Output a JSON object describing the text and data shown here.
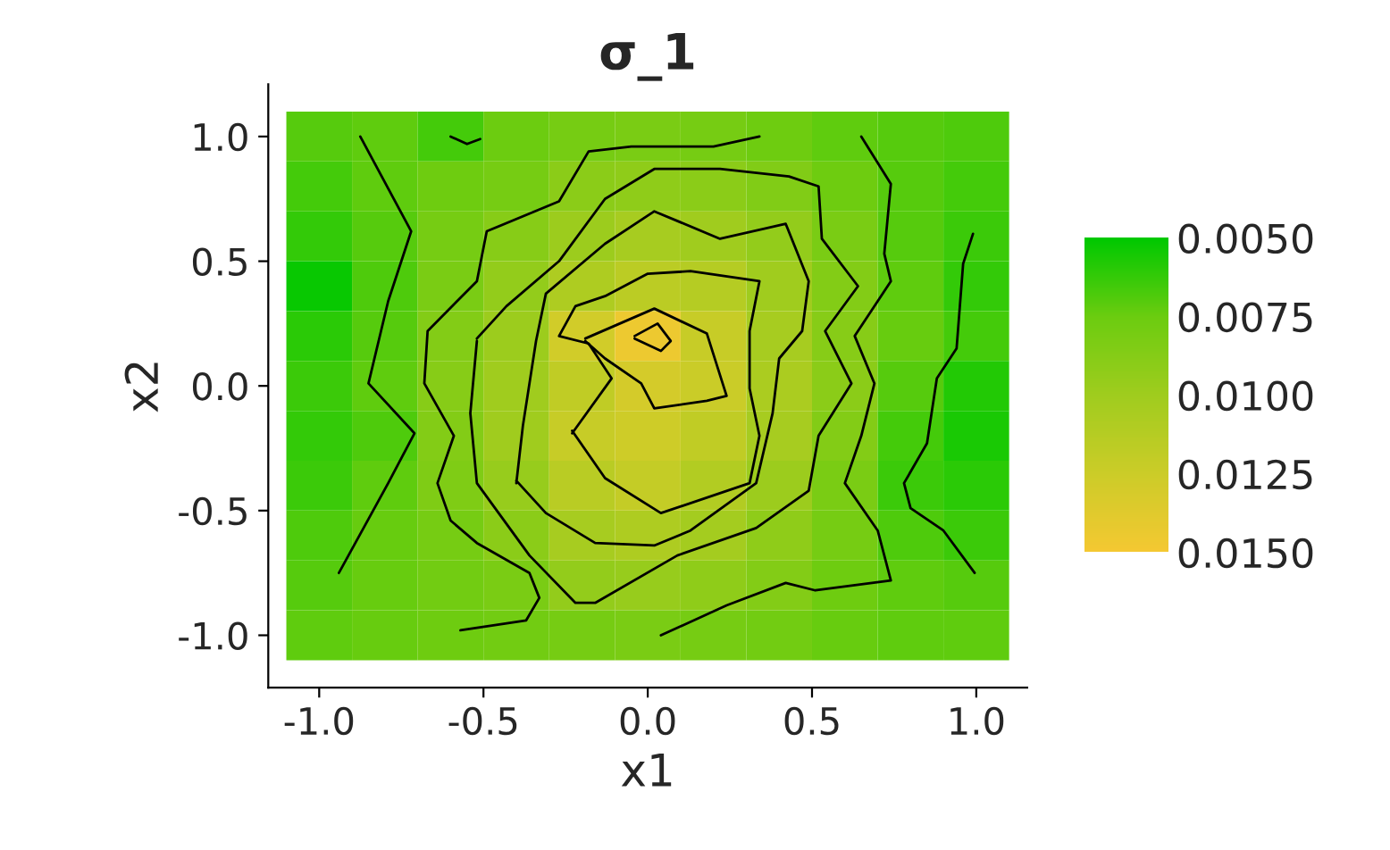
{
  "chart_data": {
    "type": "heatmap",
    "title": "σ_1",
    "xlabel": "x1",
    "ylabel": "x2",
    "x": [
      -1.0,
      -0.8,
      -0.6,
      -0.4,
      -0.2,
      0.0,
      0.2,
      0.4,
      0.6,
      0.8,
      1.0
    ],
    "y": [
      1.0,
      0.8,
      0.6,
      0.4,
      0.2,
      0.0,
      -0.2,
      -0.4,
      -0.6,
      -0.8,
      -1.0
    ],
    "cells": [
      [
        0.007,
        0.0072,
        0.0066,
        0.0075,
        0.008,
        0.0082,
        0.008,
        0.0076,
        0.0072,
        0.007,
        0.0068
      ],
      [
        0.0066,
        0.0072,
        0.0076,
        0.008,
        0.009,
        0.0092,
        0.009,
        0.0085,
        0.0076,
        0.007,
        0.0066
      ],
      [
        0.0062,
        0.007,
        0.008,
        0.0088,
        0.0098,
        0.0104,
        0.01,
        0.0094,
        0.0082,
        0.007,
        0.0064
      ],
      [
        0.0052,
        0.0068,
        0.0082,
        0.0094,
        0.0108,
        0.0115,
        0.0112,
        0.01,
        0.0086,
        0.0072,
        0.0062
      ],
      [
        0.006,
        0.007,
        0.0086,
        0.0098,
        0.0128,
        0.0145,
        0.0122,
        0.0104,
        0.0088,
        0.0074,
        0.0066
      ],
      [
        0.0064,
        0.0072,
        0.0088,
        0.01,
        0.0118,
        0.013,
        0.0124,
        0.0106,
        0.009,
        0.007,
        0.0058
      ],
      [
        0.0062,
        0.0068,
        0.0086,
        0.01,
        0.0122,
        0.0126,
        0.0118,
        0.0104,
        0.0086,
        0.0066,
        0.0056
      ],
      [
        0.0064,
        0.0072,
        0.0084,
        0.0096,
        0.0114,
        0.012,
        0.011,
        0.0098,
        0.0082,
        0.0064,
        0.006
      ],
      [
        0.0068,
        0.0074,
        0.008,
        0.009,
        0.0104,
        0.0108,
        0.0102,
        0.0092,
        0.008,
        0.0068,
        0.0064
      ],
      [
        0.007,
        0.0074,
        0.0078,
        0.0082,
        0.0094,
        0.0096,
        0.0092,
        0.0086,
        0.0076,
        0.0072,
        0.007
      ],
      [
        0.0072,
        0.0074,
        0.0076,
        0.0078,
        0.008,
        0.0082,
        0.008,
        0.0078,
        0.0074,
        0.0072,
        0.0072
      ]
    ],
    "colors": [
      "#00c800",
      "#6ccc10",
      "#a0cc1e",
      "#cccc28",
      "#f5c832"
    ],
    "clim": [
      0.005,
      0.015
    ],
    "cticks": [
      {
        "value": 0.005,
        "label": "0.0050"
      },
      {
        "value": 0.0075,
        "label": "0.0075"
      },
      {
        "value": 0.01,
        "label": "0.0100"
      },
      {
        "value": 0.0125,
        "label": "0.0125"
      },
      {
        "value": 0.015,
        "label": "0.0150"
      }
    ],
    "xlim": [
      -1.155,
      1.155
    ],
    "ylim": [
      -1.21,
      1.21
    ],
    "xticks": [
      {
        "value": -1.0,
        "label": "-1.0"
      },
      {
        "value": -0.5,
        "label": "-0.5"
      },
      {
        "value": 0.0,
        "label": "0.0"
      },
      {
        "value": 0.5,
        "label": "0.5"
      },
      {
        "value": 1.0,
        "label": "1.0"
      }
    ],
    "yticks": [
      {
        "value": -1.0,
        "label": "-1.0"
      },
      {
        "value": -0.5,
        "label": "-0.5"
      },
      {
        "value": 0.0,
        "label": "0.0"
      },
      {
        "value": 0.5,
        "label": "0.5"
      },
      {
        "value": 1.0,
        "label": "1.0"
      }
    ],
    "grid": false,
    "series": [
      {
        "type": "line",
        "color": "#000000",
        "x": [
          -0.875,
          -0.72,
          -0.79,
          -0.85,
          -0.71,
          -0.79,
          -0.94
        ],
        "values": [
          1.0,
          0.62,
          0.34,
          0.01,
          -0.19,
          -0.39,
          -0.75
        ]
      },
      {
        "type": "line",
        "color": "#000000",
        "x": [
          -0.6,
          -0.55,
          -0.51
        ],
        "values": [
          1.0,
          0.97,
          0.99
        ]
      },
      {
        "type": "line",
        "color": "#000000",
        "x": [
          0.34,
          0.2,
          -0.05,
          -0.18,
          -0.27,
          -0.49,
          -0.52,
          -0.67,
          -0.68,
          -0.59,
          -0.64,
          -0.6,
          -0.52,
          -0.36,
          -0.33,
          -0.37,
          -0.57
        ],
        "values": [
          1.0,
          0.96,
          0.96,
          0.94,
          0.74,
          0.62,
          0.42,
          0.22,
          0.01,
          -0.2,
          -0.39,
          -0.54,
          -0.63,
          -0.75,
          -0.85,
          -0.94,
          -0.98
        ]
      },
      {
        "type": "line",
        "color": "#000000",
        "x": [
          0.65,
          0.74,
          0.72,
          0.74,
          0.63,
          0.69,
          0.65,
          0.6,
          0.7,
          0.74,
          0.51,
          0.42,
          0.24,
          0.04
        ],
        "values": [
          1.0,
          0.81,
          0.53,
          0.42,
          0.2,
          0.01,
          -0.2,
          -0.39,
          -0.58,
          -0.78,
          -0.82,
          -0.79,
          -0.88,
          -1.0
        ]
      },
      {
        "type": "line",
        "color": "#000000",
        "x": [
          -0.52,
          -0.43,
          -0.27,
          -0.13,
          0.02,
          0.22,
          0.43,
          0.52,
          0.53,
          0.64,
          0.54,
          0.62,
          0.52,
          0.49,
          0.33,
          0.09,
          -0.16,
          -0.22,
          -0.36,
          -0.52,
          -0.54,
          -0.52
        ],
        "values": [
          0.19,
          0.32,
          0.5,
          0.75,
          0.87,
          0.87,
          0.84,
          0.8,
          0.59,
          0.4,
          0.22,
          0.01,
          -0.2,
          -0.42,
          -0.57,
          -0.68,
          -0.87,
          -0.87,
          -0.68,
          -0.39,
          -0.11,
          0.18
        ]
      },
      {
        "type": "line",
        "color": "#000000",
        "x": [
          -0.4,
          -0.38,
          -0.34,
          -0.31,
          -0.13,
          0.02,
          0.22,
          0.42,
          0.49,
          0.47,
          0.4,
          0.38,
          0.33,
          0.13,
          0.02,
          -0.16,
          -0.31,
          -0.4
        ],
        "values": [
          -0.39,
          -0.16,
          0.18,
          0.37,
          0.57,
          0.7,
          0.59,
          0.65,
          0.42,
          0.22,
          0.11,
          -0.11,
          -0.39,
          -0.58,
          -0.64,
          -0.63,
          -0.51,
          -0.38
        ]
      },
      {
        "type": "line",
        "color": "#000000",
        "x": [
          -0.23,
          -0.11,
          -0.18,
          -0.27,
          -0.22,
          -0.13,
          0.0,
          0.13,
          0.34,
          0.31,
          0.31,
          0.34,
          0.31,
          0.04,
          -0.13,
          -0.23
        ],
        "values": [
          -0.19,
          0.03,
          0.17,
          0.2,
          0.32,
          0.36,
          0.45,
          0.46,
          0.42,
          0.22,
          -0.01,
          -0.2,
          -0.39,
          -0.51,
          -0.37,
          -0.18
        ]
      },
      {
        "type": "line",
        "color": "#000000",
        "x": [
          -0.19,
          0.02,
          0.18,
          0.24,
          0.18,
          0.02,
          -0.02,
          -0.13,
          -0.19
        ],
        "values": [
          0.19,
          0.31,
          0.21,
          -0.04,
          -0.06,
          -0.09,
          0.01,
          0.11,
          0.18
        ]
      },
      {
        "type": "line",
        "color": "#000000",
        "x": [
          -0.04,
          0.03,
          0.07,
          0.04,
          -0.04
        ],
        "values": [
          0.2,
          0.25,
          0.18,
          0.14,
          0.19
        ]
      },
      {
        "type": "line",
        "color": "#000000",
        "x": [
          0.99,
          0.96,
          0.94,
          0.88,
          0.85,
          0.78,
          0.8,
          0.9,
          0.995
        ],
        "values": [
          0.61,
          0.49,
          0.15,
          0.03,
          -0.23,
          -0.39,
          -0.49,
          -0.58,
          -0.75
        ]
      }
    ]
  }
}
